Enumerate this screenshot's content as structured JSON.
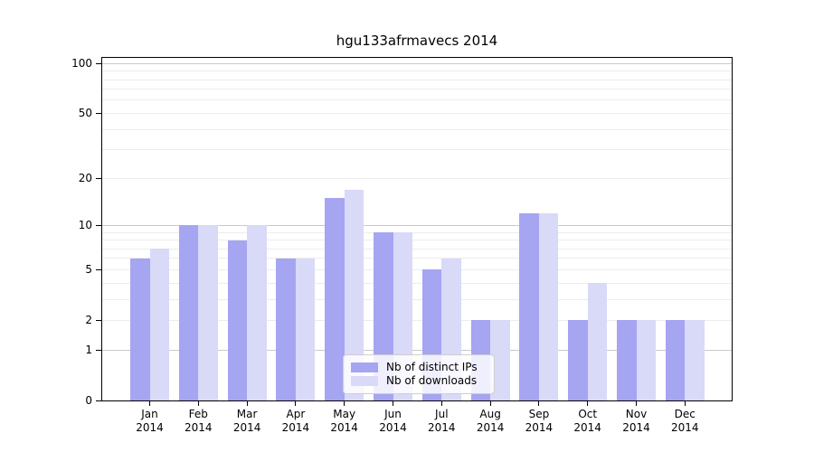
{
  "chart_data": {
    "type": "bar",
    "title": "hgu133afrmavecs 2014",
    "months": [
      "Jan",
      "Feb",
      "Mar",
      "Apr",
      "May",
      "Jun",
      "Jul",
      "Aug",
      "Sep",
      "Oct",
      "Nov",
      "Dec"
    ],
    "year": "2014",
    "series": [
      {
        "name": "Nb of distinct IPs",
        "color": "#a5a5f2",
        "values": [
          6,
          10,
          8,
          6,
          15,
          9,
          5,
          2,
          12,
          2,
          2,
          2
        ]
      },
      {
        "name": "Nb of downloads",
        "color": "#d9d9f8",
        "values": [
          7,
          10,
          10,
          6,
          17,
          9,
          6,
          2,
          12,
          4,
          2,
          2
        ]
      }
    ],
    "yscale": "log1p",
    "ylim": [
      0,
      110
    ],
    "y_tick_values": [
      0,
      1,
      2,
      5,
      10,
      20,
      50,
      100
    ],
    "y_tick_labels": [
      "0",
      "1",
      "2",
      "5",
      "10",
      "20",
      "50",
      "100"
    ],
    "major_gridlines": [
      1,
      10,
      100
    ],
    "minor_gridlines": [
      2,
      3,
      4,
      5,
      6,
      7,
      8,
      9,
      20,
      30,
      40,
      50,
      60,
      70,
      80,
      90
    ],
    "grid": true,
    "legend_position": "lower center-right inside plot",
    "xlabel": "",
    "ylabel": ""
  },
  "colors": {
    "background": "#ffffff",
    "spine": "#000000",
    "major_grid": "#c9c9c9",
    "minor_grid": "#ececec",
    "text": "#000000",
    "bar_distinct_ips": "#a5a5f2",
    "bar_downloads": "#d9d9f8"
  }
}
